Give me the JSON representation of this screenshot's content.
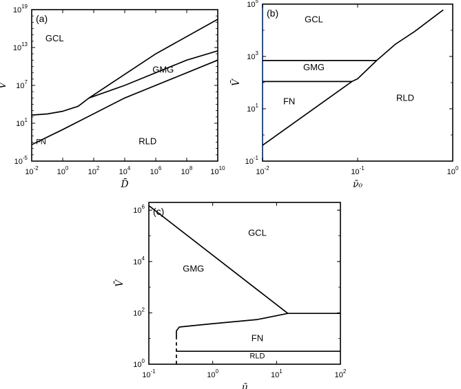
{
  "chart_data": [
    {
      "panel": "(a)",
      "type": "line",
      "xlabel": "D̄",
      "ylabel": "V̄",
      "xscale": "log",
      "yscale": "log",
      "xlim": [
        0.01,
        10000000000.0
      ],
      "ylim": [
        1e-05,
        1e+19
      ],
      "x_ticks": [
        {
          "value": 0.01,
          "base": "10",
          "exp": "-2"
        },
        {
          "value": 1,
          "base": "10",
          "exp": "0"
        },
        {
          "value": 100,
          "base": "10",
          "exp": "2"
        },
        {
          "value": 10000,
          "base": "10",
          "exp": "4"
        },
        {
          "value": 1000000.0,
          "base": "10",
          "exp": "6"
        },
        {
          "value": 100000000.0,
          "base": "10",
          "exp": "8"
        },
        {
          "value": 10000000000.0,
          "base": "10",
          "exp": "10"
        }
      ],
      "y_ticks": [
        {
          "value": 1e-05,
          "base": "10",
          "exp": "-5"
        },
        {
          "value": 10,
          "base": "10",
          "exp": "1"
        },
        {
          "value": 10000000.0,
          "base": "10",
          "exp": "7"
        },
        {
          "value": 10000000000000.0,
          "base": "10",
          "exp": "13"
        },
        {
          "value": 1e+19,
          "base": "10",
          "exp": "19"
        }
      ],
      "regions": [
        {
          "label": "GCL",
          "x": 0.3,
          "y": 100000000000000.0
        },
        {
          "label": "GMG",
          "x": 3000000.0,
          "y": 1000000000.0
        },
        {
          "label": "FN",
          "x": 0.04,
          "y": 0.005
        },
        {
          "label": "RLD",
          "x": 300000.0,
          "y": 0.005
        }
      ],
      "series": [
        {
          "values": [
            [
              0.01,
              200
            ],
            [
              0.1,
              300
            ],
            [
              1,
              800
            ],
            [
              10,
              5000
            ],
            [
              50,
              100000.0
            ],
            [
              10000.0,
              10000000.0
            ],
            [
              100000000.0,
              100000000000.0
            ],
            [
              10000000000.0,
              3000000000000.0
            ]
          ]
        },
        {
          "values": [
            [
              50,
              100000.0
            ],
            [
              1000000.0,
              1000000000000.0
            ],
            [
              10000000000.0,
              3e+17
            ]
          ]
        },
        {
          "values": [
            [
              0.01,
              0.004
            ],
            [
              1,
              1
            ],
            [
              10000.0,
              100000.0
            ],
            [
              100000000.0,
              1000000000.0
            ],
            [
              10000000000.0,
              100000000000.0
            ]
          ]
        }
      ]
    },
    {
      "panel": "(b)",
      "type": "line",
      "xlabel": "ν̄₀",
      "ylabel": "V̄",
      "xscale": "linear",
      "yscale": "log",
      "xlim": [
        0,
        1
      ],
      "ylim": [
        0.1,
        100000
      ],
      "x_tick_labels": [
        "10-2",
        "10-1",
        "10"
      ],
      "x_tick_parts": [
        {
          "base": "10",
          "exp": "-2"
        },
        {
          "base": "10",
          "exp": "-1"
        },
        {
          "base": "10",
          "exp": "0"
        }
      ],
      "y_ticks": [
        {
          "value": 0.1,
          "base": "10",
          "exp": "-1"
        },
        {
          "value": 10,
          "base": "10",
          "exp": "1"
        },
        {
          "value": 1000,
          "base": "10",
          "exp": "3"
        },
        {
          "value": 100000,
          "base": "10",
          "exp": "5"
        }
      ],
      "regions": [
        {
          "label": "GCL",
          "x": 0.27,
          "y": 20000
        },
        {
          "label": "GMG",
          "x": 0.27,
          "y": 300
        },
        {
          "label": "FN",
          "x": 0.14,
          "y": 15
        },
        {
          "label": "RLD",
          "x": 0.75,
          "y": 20
        }
      ],
      "series": [
        {
          "values": [
            [
              0.0,
              0.4
            ],
            [
              0.47,
              110
            ],
            [
              0.5,
              140
            ],
            [
              0.6,
              700
            ],
            [
              0.7,
              3000
            ],
            [
              0.8,
              9000
            ],
            [
              0.95,
              60000
            ]
          ]
        },
        {
          "values": [
            [
              0.0,
              700
            ],
            [
              0.6,
              700
            ]
          ]
        },
        {
          "values": [
            [
              0.0,
              110
            ],
            [
              0.47,
              110
            ]
          ]
        }
      ]
    },
    {
      "panel": "(c)",
      "type": "line",
      "xlabel": "μ̄",
      "ylabel": "V̄",
      "xscale": "log",
      "yscale": "log",
      "xlim": [
        0.1,
        100
      ],
      "ylim": [
        1,
        2000000
      ],
      "x_ticks": [
        {
          "value": 0.1,
          "base": "10",
          "exp": "-1"
        },
        {
          "value": 1,
          "base": "10",
          "exp": "0"
        },
        {
          "value": 10,
          "base": "10",
          "exp": "1"
        },
        {
          "value": 100,
          "base": "10",
          "exp": "2"
        }
      ],
      "y_ticks": [
        {
          "value": 1,
          "base": "10",
          "exp": "0"
        },
        {
          "value": 100,
          "base": "10",
          "exp": "2"
        },
        {
          "value": 10000,
          "base": "10",
          "exp": "4"
        },
        {
          "value": 1000000,
          "base": "10",
          "exp": "6"
        }
      ],
      "regions": [
        {
          "label": "GCL",
          "x": 5,
          "y": 100000
        },
        {
          "label": "GMG",
          "x": 0.5,
          "y": 4000
        },
        {
          "label": "FN",
          "x": 5,
          "y": 8
        },
        {
          "label": "RLD",
          "x": 5,
          "y": 1.7
        }
      ],
      "series": [
        {
          "values": [
            [
              0.1,
              1500000
            ],
            [
              15,
              95
            ],
            [
              100,
              95
            ]
          ]
        },
        {
          "values": [
            [
              0.27,
              10
            ],
            [
              0.27,
              20
            ],
            [
              0.3,
              28
            ],
            [
              0.5,
              32
            ],
            [
              1,
              38
            ],
            [
              5,
              55
            ],
            [
              15,
              95
            ]
          ]
        },
        {
          "values": [
            [
              0.27,
              3.2
            ],
            [
              100,
              3.2
            ]
          ]
        },
        {
          "style": "dashed",
          "values": [
            [
              0.27,
              1
            ],
            [
              0.27,
              10
            ]
          ]
        }
      ]
    }
  ],
  "colors": {
    "axis": "#000000",
    "curve": "#000000",
    "left_spine_b": "#2f4f7f"
  }
}
